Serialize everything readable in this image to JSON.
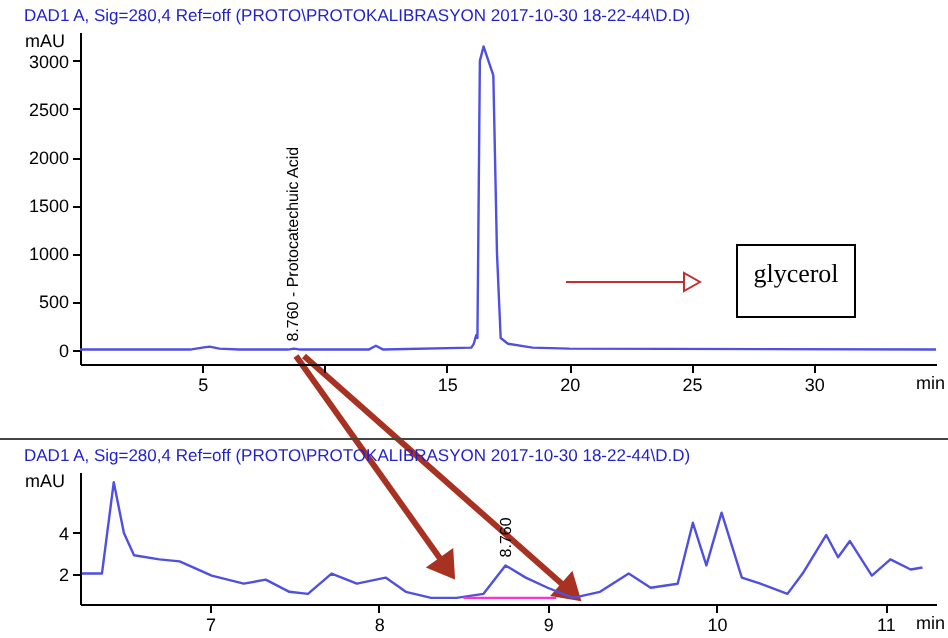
{
  "chart_data": [
    {
      "type": "line",
      "title": "DAD1 A, Sig=280,4 Ref=off (PROTO\\PROTOKALIBRASYON 2017-10-30 18-22-44\\D.D)",
      "xlabel": "min",
      "ylabel": "mAU",
      "xlim": [
        0,
        35
      ],
      "ylim": [
        -150,
        3300
      ],
      "xticks": [
        5,
        {
          "value": 10,
          "label": null
        },
        15,
        20,
        25,
        30
      ],
      "yticks": [
        0,
        500,
        1000,
        1500,
        2000,
        2500,
        3000
      ],
      "series": [
        {
          "color": "#5050e0",
          "x": [
            0,
            4.5,
            5.0,
            5.3,
            5.7,
            6.5,
            8.5,
            8.76,
            9.0,
            11.8,
            12.1,
            12.4,
            16.0,
            16.1,
            16.2,
            16.25,
            16.35,
            16.5,
            16.7,
            16.9,
            17.05,
            17.2,
            17.5,
            18.5,
            20,
            35
          ],
          "values": [
            0,
            0,
            20,
            30,
            10,
            0,
            0,
            10,
            0,
            0,
            40,
            0,
            20,
            60,
            150,
            120,
            3000,
            3150,
            3000,
            2850,
            1000,
            120,
            60,
            20,
            10,
            0
          ]
        }
      ],
      "annotations": [
        {
          "text": "8.760 - Protocatechuic Acid",
          "x": 8.76,
          "y": 0
        },
        "glycerol"
      ]
    },
    {
      "type": "line",
      "title": "DAD1 A, Sig=280,4 Ref=off (PROTO\\PROTOKALIBRASYON 2017-10-30 18-22-44\\D.D)",
      "xlabel": "min",
      "ylabel": "mAU",
      "xlim": [
        6.23,
        11.3
      ],
      "ylim": [
        0.5,
        7
      ],
      "xticks": [
        7,
        8,
        9,
        10,
        11
      ],
      "yticks": [
        2,
        4
      ],
      "series": [
        {
          "color": "#5050e0",
          "x": [
            6.24,
            6.36,
            6.43,
            6.49,
            6.55,
            6.7,
            6.82,
            7.01,
            7.2,
            7.33,
            7.47,
            7.58,
            7.72,
            7.87,
            8.04,
            8.16,
            8.31,
            8.46,
            8.62,
            8.75,
            8.87,
            9.0,
            9.15,
            9.31,
            9.48,
            9.61,
            9.77,
            9.86,
            9.94,
            10.03,
            10.15,
            10.26,
            10.42,
            10.51,
            10.65,
            10.72,
            10.79,
            10.92,
            11.03,
            11.15,
            11.22
          ],
          "values": [
            2.0,
            2.0,
            6.5,
            4.0,
            2.9,
            2.7,
            2.6,
            1.9,
            1.5,
            1.7,
            1.1,
            1.0,
            2.0,
            1.5,
            1.8,
            1.1,
            0.8,
            0.8,
            1.0,
            2.4,
            1.8,
            1.3,
            0.8,
            1.1,
            2.0,
            1.3,
            1.5,
            4.5,
            2.4,
            5.0,
            1.8,
            1.5,
            1.0,
            2.0,
            3.9,
            2.8,
            3.6,
            1.9,
            2.7,
            2.2,
            2.3
          ]
        },
        {
          "color": "#ff33cc",
          "x": [
            8.5,
            9.05
          ],
          "values": [
            0.8,
            0.8
          ]
        }
      ],
      "annotations": [
        {
          "text": "8.760",
          "x": 8.76,
          "y": 2.4
        }
      ]
    }
  ]
}
